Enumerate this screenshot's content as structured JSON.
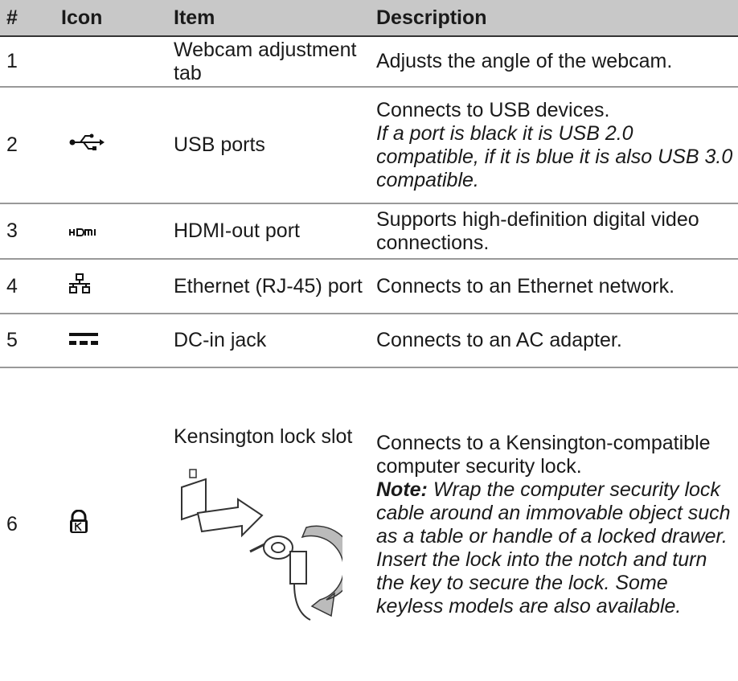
{
  "header": [
    "#",
    "Icon",
    "Item",
    "Description"
  ],
  "rows": [
    {
      "number": "1",
      "item": "Webcam adjustment tab",
      "description": "Adjusts the angle of the webcam."
    },
    {
      "number": "2",
      "item": "USB ports",
      "description": "Connects to USB devices.",
      "note": "If a port is black it is USB 2.0 compatible, if it is blue it is also USB 3.0 compatible."
    },
    {
      "number": "3",
      "item": "HDMI-out port",
      "description": "Supports high-definition digital video connections."
    },
    {
      "number": "4",
      "item": "Ethernet (RJ-45) port",
      "description": "Connects to an Ethernet network."
    },
    {
      "number": "5",
      "item": "DC-in jack",
      "description": "Connects to an AC adapter."
    },
    {
      "number": "6",
      "item": "Kensington lock slot",
      "description": "Connects to a Kensington-compatible computer security lock.",
      "note_label": "Note:",
      "note": "Wrap the computer security lock cable around an immovable object such as a table or handle of a locked drawer. Insert the lock into the notch and turn the key to secure the lock. Some keyless models are also available."
    }
  ]
}
